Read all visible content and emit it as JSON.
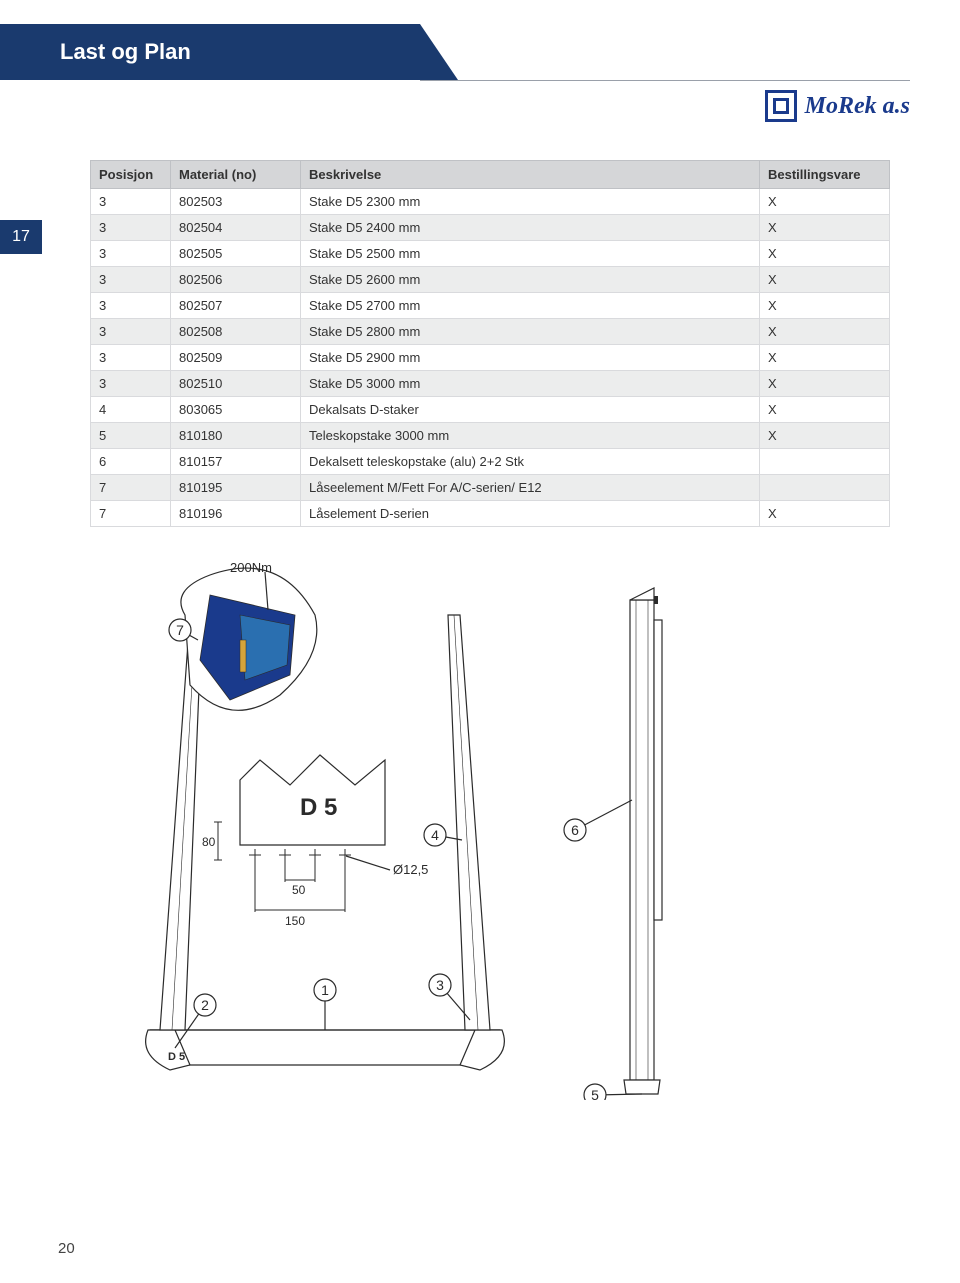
{
  "header": {
    "title": "Last og Plan"
  },
  "logo": {
    "text": "MoRek a.s"
  },
  "page_tab": "17",
  "page_number": "20",
  "table": {
    "columns": [
      "Posisjon",
      "Material (no)",
      "Beskrivelse",
      "Bestillingsvare"
    ],
    "rows": [
      [
        "3",
        "802503",
        "Stake D5 2300 mm",
        "X"
      ],
      [
        "3",
        "802504",
        "Stake D5 2400 mm",
        "X"
      ],
      [
        "3",
        "802505",
        "Stake D5 2500 mm",
        "X"
      ],
      [
        "3",
        "802506",
        "Stake D5 2600 mm",
        "X"
      ],
      [
        "3",
        "802507",
        "Stake D5 2700 mm",
        "X"
      ],
      [
        "3",
        "802508",
        "Stake D5 2800 mm",
        "X"
      ],
      [
        "3",
        "802509",
        "Stake D5 2900 mm",
        "X"
      ],
      [
        "3",
        "802510",
        "Stake D5 3000 mm",
        "X"
      ],
      [
        "4",
        "803065",
        "Dekalsats D-staker",
        "X"
      ],
      [
        "5",
        "810180",
        "Teleskopstake 3000 mm",
        "X"
      ],
      [
        "6",
        "810157",
        "Dekalsett teleskopstake (alu) 2+2 Stk",
        ""
      ],
      [
        "7",
        "810195",
        "Låseelement M/Fett For A/C-serien/ E12",
        ""
      ],
      [
        "7",
        "810196",
        "Låselement D-serien",
        "X"
      ]
    ],
    "header_bg": "#d5d6d8",
    "row_alt_bg": "#eceded",
    "border_color": "#d9dadd",
    "font_size": 13
  },
  "diagram": {
    "type": "technical-drawing",
    "callouts": [
      "1",
      "2",
      "3",
      "4",
      "5",
      "6",
      "7"
    ],
    "labels": {
      "torque": "200Nm",
      "profile": "D 5",
      "dim_v": "80",
      "dim_50": "50",
      "dim_150": "150",
      "dia": "Ø12,5",
      "footer_mark": "D 5"
    },
    "colors": {
      "line": "#2b2b2b",
      "detail_fill": "#1a3a8c",
      "detail_accent": "#2a6fb0",
      "background": "#ffffff"
    },
    "line_width": 1.2,
    "callout_radius": 11,
    "font_size": 14
  }
}
